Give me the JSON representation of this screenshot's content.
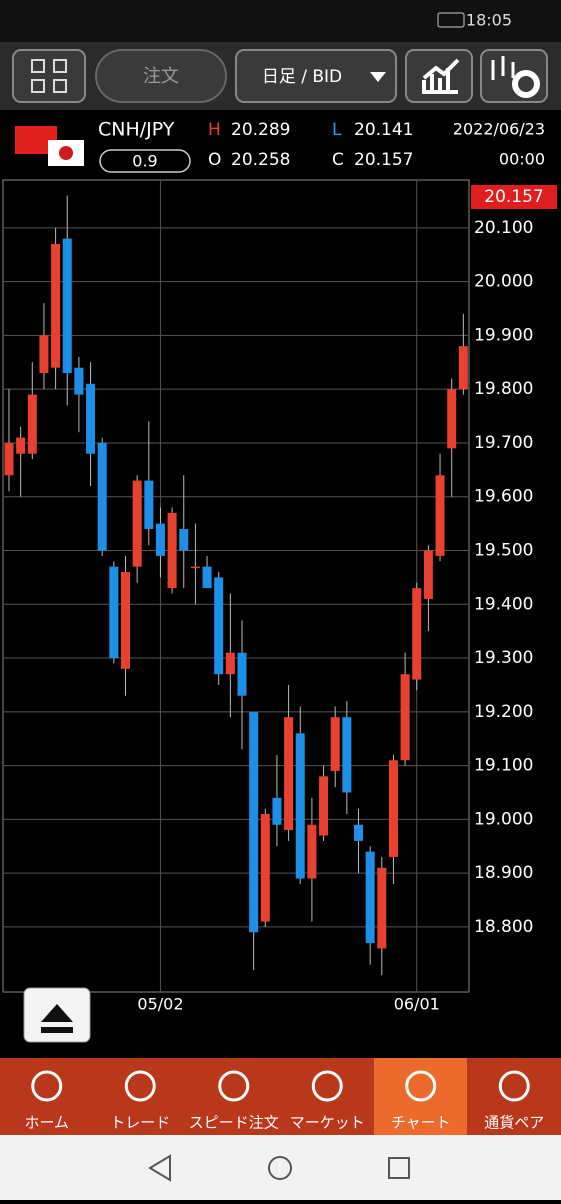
{
  "status": {
    "time": "18:05"
  },
  "toolbar": {
    "order": "注文",
    "period": "日足 / BID"
  },
  "quote": {
    "pair": "CNH/JPY",
    "spread": 0.9,
    "high_label": "H",
    "high": 20.289,
    "low_label": "L",
    "low": 20.141,
    "open_label": "O",
    "open": 20.258,
    "close_label": "C",
    "close": 20.157,
    "date": "2022/06/23",
    "time": "00:00"
  },
  "chart_data": {
    "type": "candlestick",
    "categories": [
      null,
      null,
      null,
      null,
      null,
      null,
      null,
      null,
      null,
      null,
      null,
      null,
      null,
      "05/02",
      null,
      null,
      null,
      null,
      null,
      null,
      null,
      null,
      null,
      null,
      null,
      null,
      null,
      null,
      null,
      null,
      null,
      null,
      null,
      null,
      null,
      "06/01",
      null,
      null,
      null,
      null
    ],
    "open": [
      19.64,
      19.68,
      19.68,
      19.83,
      19.84,
      20.08,
      19.84,
      19.81,
      19.7,
      19.47,
      19.28,
      19.47,
      19.63,
      19.55,
      19.43,
      19.54,
      19.47,
      19.47,
      19.45,
      19.27,
      19.31,
      19.2,
      18.81,
      19.04,
      18.98,
      19.16,
      18.89,
      18.97,
      19.09,
      19.19,
      18.99,
      18.94,
      18.76,
      18.93,
      19.11,
      19.26,
      19.41,
      19.49,
      19.69,
      19.8
    ],
    "high": [
      19.8,
      19.73,
      19.85,
      19.96,
      20.1,
      20.16,
      19.86,
      19.85,
      19.71,
      19.48,
      19.49,
      19.64,
      19.74,
      19.58,
      19.58,
      19.64,
      19.55,
      19.49,
      19.46,
      19.42,
      19.37,
      19.2,
      19.02,
      19.12,
      19.25,
      19.21,
      19.04,
      19.1,
      19.21,
      19.22,
      19.02,
      18.95,
      18.93,
      19.12,
      19.31,
      19.44,
      19.51,
      19.68,
      19.82,
      19.94
    ],
    "low": [
      19.61,
      19.6,
      19.67,
      19.8,
      19.8,
      19.77,
      19.72,
      19.62,
      19.49,
      19.29,
      19.23,
      19.44,
      19.51,
      19.45,
      19.42,
      19.43,
      19.4,
      19.43,
      19.25,
      19.19,
      19.13,
      18.72,
      18.8,
      18.95,
      18.96,
      18.88,
      18.81,
      18.96,
      19.06,
      19.01,
      18.9,
      18.73,
      18.71,
      18.88,
      19.1,
      19.24,
      19.35,
      19.48,
      19.6,
      19.79
    ],
    "close": [
      19.7,
      19.71,
      19.79,
      19.9,
      20.07,
      19.83,
      19.79,
      19.68,
      19.5,
      19.3,
      19.46,
      19.63,
      19.54,
      19.49,
      19.57,
      19.5,
      19.47,
      19.43,
      19.27,
      19.31,
      19.23,
      18.79,
      19.01,
      18.99,
      19.19,
      18.89,
      18.99,
      19.08,
      19.19,
      19.05,
      18.96,
      18.77,
      18.91,
      19.11,
      19.27,
      19.43,
      19.5,
      19.64,
      19.8,
      19.88
    ],
    "ylim": [
      18.679,
      20.189
    ],
    "yticks": [
      {
        "value": 18.8,
        "label": "18.800"
      },
      {
        "value": 18.9,
        "label": "18.900"
      },
      {
        "value": 19.0,
        "label": "19.000"
      },
      {
        "value": 19.1,
        "label": "19.100"
      },
      {
        "value": 19.2,
        "label": "19.200"
      },
      {
        "value": 19.3,
        "label": "19.300"
      },
      {
        "value": 19.4,
        "label": "19.400"
      },
      {
        "value": 19.5,
        "label": "19.500"
      },
      {
        "value": 19.6,
        "label": "19.600"
      },
      {
        "value": 19.7,
        "label": "19.700"
      },
      {
        "value": 19.8,
        "label": "19.800"
      },
      {
        "value": 19.9,
        "label": "19.900"
      },
      {
        "value": 20.0,
        "label": "20.000"
      },
      {
        "value": 20.1,
        "label": "20.100"
      }
    ],
    "grid": true,
    "up_color": "#e8412f",
    "down_color": "#1e8fe6"
  },
  "nav": [
    "ホーム",
    "トレード",
    "スピード注文",
    "マーケット",
    "チャート",
    "通貨ペア"
  ]
}
